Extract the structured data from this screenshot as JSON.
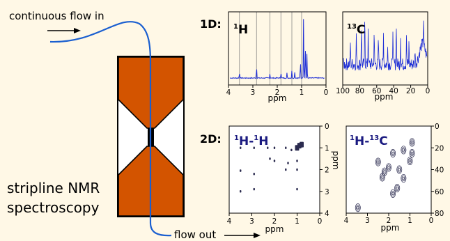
{
  "labels": {
    "flow_in": "continuous flow in",
    "flow_out": "flow out",
    "device_line1": "stripline NMR",
    "device_line2": "spectroscopy",
    "label_1d": "1D:",
    "label_2d": "2D:"
  },
  "colors": {
    "background": "#fff8e6",
    "electrode": "#d35400",
    "flow_tube": "#1a5fd0",
    "spectrum": "#1f2fd6",
    "contour": "#2b2b4f",
    "label_2d_text": "#1a1a80"
  },
  "panels": {
    "h1": {
      "nucleus": {
        "sup": "1",
        "sym": "H"
      },
      "xlabel": "ppm",
      "xticks": [
        "4",
        "3",
        "2",
        "1",
        "0"
      ]
    },
    "c13": {
      "nucleus": {
        "sup": "13",
        "sym": "C"
      },
      "xlabel": "ppm",
      "xticks": [
        "100",
        "80",
        "60",
        "40",
        "20",
        "0"
      ]
    },
    "hh": {
      "title": {
        "sup1": "1",
        "sym1": "H-",
        "sup2": "1",
        "sym2": "H"
      },
      "xlabel": "ppm",
      "ylabel": "ppm",
      "xticks": [
        "4",
        "3",
        "2",
        "1",
        "0"
      ],
      "yticks": [
        "0",
        "1",
        "2",
        "3",
        "4"
      ]
    },
    "hc": {
      "title": {
        "sup1": "1",
        "sym1": "H-",
        "sup2": "13",
        "sym2": "C"
      },
      "xlabel": "ppm",
      "xticks": [
        "4",
        "3",
        "2",
        "1",
        "0"
      ],
      "yticks": [
        "0",
        "20",
        "40",
        "60",
        "80"
      ]
    }
  },
  "chart_data": [
    {
      "type": "line",
      "panel": "1H 1D spectrum",
      "xlabel": "ppm",
      "xlim": [
        4,
        0
      ],
      "gridlines_x": [
        3.55,
        2.85,
        2.3,
        1.85,
        1.4,
        1.0
      ],
      "peaks": [
        {
          "x": 3.55,
          "h": 0.1
        },
        {
          "x": 2.85,
          "h": 0.2
        },
        {
          "x": 2.3,
          "h": 0.07
        },
        {
          "x": 1.85,
          "h": 0.1
        },
        {
          "x": 1.6,
          "h": 0.08
        },
        {
          "x": 1.4,
          "h": 0.12
        },
        {
          "x": 1.28,
          "h": 0.1
        },
        {
          "x": 1.05,
          "h": 0.3
        },
        {
          "x": 0.92,
          "h": 0.98
        },
        {
          "x": 0.85,
          "h": 0.6
        },
        {
          "x": 0.78,
          "h": 0.4
        }
      ]
    },
    {
      "type": "line",
      "panel": "13C 1D spectrum",
      "xlabel": "ppm",
      "xlim": [
        100,
        0
      ],
      "peaks": [
        {
          "x": 91,
          "h": 0.4
        },
        {
          "x": 84,
          "h": 0.55
        },
        {
          "x": 78,
          "h": 0.75
        },
        {
          "x": 74,
          "h": 0.88
        },
        {
          "x": 70,
          "h": 0.7
        },
        {
          "x": 63,
          "h": 0.6
        },
        {
          "x": 58,
          "h": 0.45
        },
        {
          "x": 52,
          "h": 0.55
        },
        {
          "x": 47,
          "h": 0.35
        },
        {
          "x": 41,
          "h": 0.68
        },
        {
          "x": 37,
          "h": 0.8
        },
        {
          "x": 32,
          "h": 0.5
        },
        {
          "x": 25,
          "h": 0.55
        },
        {
          "x": 22,
          "h": 0.4
        },
        {
          "x": 15,
          "h": 0.3
        },
        {
          "x": 5,
          "h": 0.48
        }
      ]
    },
    {
      "type": "scatter",
      "panel": "1H-1H 2D spectrum",
      "xlim": [
        4,
        0
      ],
      "ylim": [
        0,
        4
      ],
      "points": [
        {
          "x": 0.9,
          "y": 0.9
        },
        {
          "x": 1.0,
          "y": 1.0
        },
        {
          "x": 1.25,
          "y": 1.1
        },
        {
          "x": 1.5,
          "y": 1.0
        },
        {
          "x": 2.0,
          "y": 1.0
        },
        {
          "x": 2.3,
          "y": 1.0
        },
        {
          "x": 2.9,
          "y": 1.0
        },
        {
          "x": 3.5,
          "y": 1.0
        },
        {
          "x": 1.0,
          "y": 1.6
        },
        {
          "x": 1.0,
          "y": 2.0
        },
        {
          "x": 1.5,
          "y": 2.0
        },
        {
          "x": 2.0,
          "y": 1.6
        },
        {
          "x": 3.5,
          "y": 2.05
        },
        {
          "x": 2.9,
          "y": 2.2
        },
        {
          "x": 1.0,
          "y": 2.9
        },
        {
          "x": 2.9,
          "y": 2.9
        },
        {
          "x": 3.5,
          "y": 3.0
        },
        {
          "x": 0.8,
          "y": 0.85
        },
        {
          "x": 1.4,
          "y": 1.7
        },
        {
          "x": 2.2,
          "y": 1.5
        }
      ]
    },
    {
      "type": "scatter",
      "panel": "1H-13C 2D spectrum",
      "xlim": [
        4,
        0
      ],
      "ylim": [
        0,
        80
      ],
      "points": [
        {
          "x": 0.9,
          "y": 15
        },
        {
          "x": 0.9,
          "y": 25
        },
        {
          "x": 1.0,
          "y": 32
        },
        {
          "x": 1.3,
          "y": 22
        },
        {
          "x": 1.8,
          "y": 25
        },
        {
          "x": 1.5,
          "y": 40
        },
        {
          "x": 2.0,
          "y": 38
        },
        {
          "x": 2.2,
          "y": 42
        },
        {
          "x": 2.5,
          "y": 33
        },
        {
          "x": 2.3,
          "y": 47
        },
        {
          "x": 1.3,
          "y": 48
        },
        {
          "x": 3.45,
          "y": 75
        },
        {
          "x": 1.6,
          "y": 57
        },
        {
          "x": 1.8,
          "y": 62
        }
      ]
    }
  ]
}
